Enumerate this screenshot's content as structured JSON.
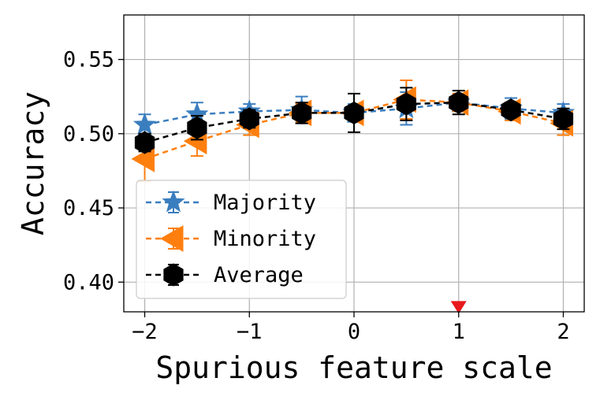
{
  "chart_data": {
    "type": "line",
    "xlabel": "Spurious feature scale",
    "ylabel": "Accuracy",
    "xlim": [
      -2.2,
      2.2
    ],
    "ylim": [
      0.38,
      0.58
    ],
    "x_ticks": [
      -2,
      -1,
      0,
      1,
      2
    ],
    "x_tick_labels": [
      "−2",
      "−1",
      "0",
      "1",
      "2"
    ],
    "y_ticks": [
      0.4,
      0.45,
      0.5,
      0.55
    ],
    "y_tick_labels": [
      "0.40",
      "0.45",
      "0.50",
      "0.55"
    ],
    "grid": true,
    "legend_position": "lower-left",
    "x": [
      -2,
      -1.5,
      -1,
      -0.5,
      0,
      0.5,
      1,
      1.5,
      2
    ],
    "series": [
      {
        "name": "Majority",
        "color": "#3a7ebf",
        "marker": "star",
        "values": [
          0.506,
          0.513,
          0.515,
          0.516,
          0.514,
          0.517,
          0.521,
          0.517,
          0.514
        ],
        "errors": [
          0.007,
          0.008,
          0.005,
          0.009,
          0.006,
          0.011,
          0.006,
          0.007,
          0.006
        ]
      },
      {
        "name": "Minority",
        "color": "#ff7f0e",
        "marker": "triangle-left",
        "values": [
          0.483,
          0.495,
          0.506,
          0.514,
          0.514,
          0.523,
          0.521,
          0.515,
          0.507
        ],
        "errors": [
          0.015,
          0.01,
          0.007,
          0.006,
          0.005,
          0.013,
          0.006,
          0.006,
          0.008
        ]
      },
      {
        "name": "Average",
        "color": "#000000",
        "marker": "hexagon",
        "values": [
          0.494,
          0.504,
          0.51,
          0.514,
          0.514,
          0.52,
          0.521,
          0.516,
          0.51
        ],
        "errors": [
          0.006,
          0.008,
          0.006,
          0.007,
          0.013,
          0.011,
          0.008,
          0.005,
          0.007
        ]
      }
    ],
    "annotations": [
      {
        "type": "marker",
        "shape": "triangle-down",
        "x": 1,
        "y": 0.383,
        "color": "#e8191c"
      }
    ]
  }
}
